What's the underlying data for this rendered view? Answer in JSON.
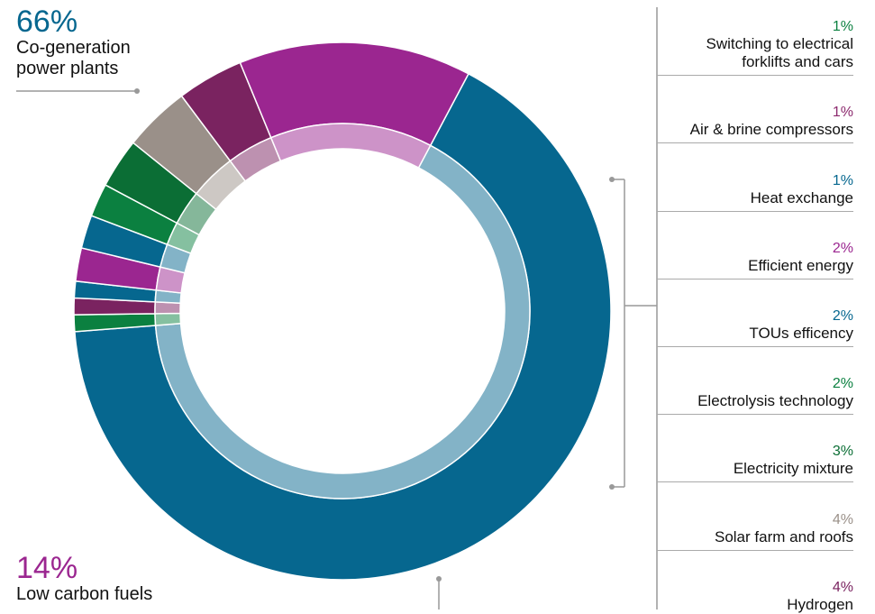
{
  "colors": {
    "blue": "#06678f",
    "purple": "#9b2690",
    "green": "#0b8040",
    "gray": "#999999",
    "grid": "#999999"
  },
  "callouts": {
    "main": {
      "value": "66%",
      "label_line1": "Co-generation",
      "label_line2": "power plants"
    },
    "fuels": {
      "value": "14%",
      "label": "Low carbon fuels"
    }
  },
  "legend": [
    {
      "value": "1%",
      "label_line1": "Switching to electrical",
      "label_line2": "forklifts and cars",
      "color": "#0b8040"
    },
    {
      "value": "1%",
      "label_line1": "Air & brine compressors",
      "label_line2": "",
      "color": "#8c2a6e"
    },
    {
      "value": "1%",
      "label_line1": "Heat exchange",
      "label_line2": "",
      "color": "#06678f"
    },
    {
      "value": "2%",
      "label_line1": "Efficient energy",
      "label_line2": "",
      "color": "#9b2690"
    },
    {
      "value": "2%",
      "label_line1": "TOUs efficency",
      "label_line2": "",
      "color": "#06678f"
    },
    {
      "value": "2%",
      "label_line1": "Electrolysis technology",
      "label_line2": "",
      "color": "#0b8040"
    },
    {
      "value": "3%",
      "label_line1": "Electricity mixture",
      "label_line2": "",
      "color": "#0b6e35"
    },
    {
      "value": "4%",
      "label_line1": "Solar farm and roofs",
      "label_line2": "",
      "color": "#9a9089"
    },
    {
      "value": "4%",
      "label_line1": "Hydrogen",
      "label_line2": "",
      "color": "#7a2360"
    }
  ],
  "chart_data": {
    "type": "pie",
    "subtype": "donut",
    "categories": [
      "Co-generation power plants",
      "Switching to electrical forklifts and cars",
      "Air & brine compressors",
      "Heat exchange",
      "Efficient energy",
      "TOUs efficency",
      "Electrolysis technology",
      "Electricity mixture",
      "Solar farm and roofs",
      "Hydrogen",
      "Low carbon fuels"
    ],
    "values": [
      66,
      1,
      1,
      1,
      2,
      2,
      2,
      3,
      4,
      4,
      14
    ],
    "colors": [
      "#06678f",
      "#0b8040",
      "#7a2360",
      "#06678f",
      "#9b2690",
      "#06678f",
      "#0b8040",
      "#0b6e35",
      "#9a9089",
      "#7a2360",
      "#9b2690"
    ]
  }
}
